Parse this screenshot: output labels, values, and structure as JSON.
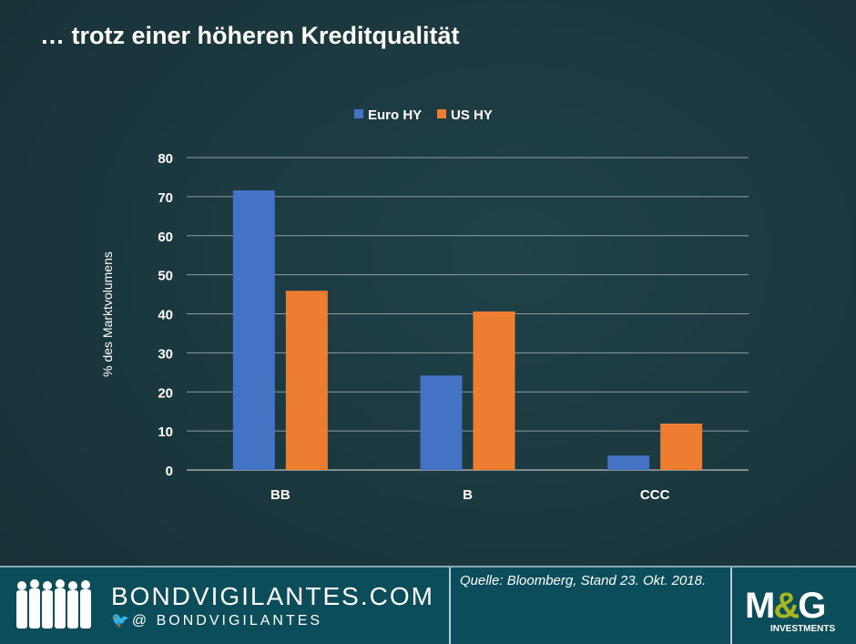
{
  "title": "… trotz einer höheren Kreditqualität",
  "footer": {
    "site": "BONDVIGILANTES.COM",
    "handle": "@ BONDVIGILANTES",
    "source": "Quelle: Bloomberg, Stand 23. Okt. 2018.",
    "logo": "M&G",
    "logo_sub": "INVESTMENTS"
  },
  "chart_data": {
    "type": "bar",
    "categories": [
      "BB",
      "B",
      "CCC"
    ],
    "series": [
      {
        "name": "Euro HY",
        "values": [
          71.6,
          24.2,
          3.7
        ],
        "color": "#4472c4"
      },
      {
        "name": "US HY",
        "values": [
          45.9,
          40.6,
          11.9
        ],
        "color": "#ed7d31"
      }
    ],
    "ylabel": "% des Marktvolumens",
    "ylim": [
      0,
      80
    ],
    "yticks": [
      0,
      10,
      20,
      30,
      40,
      50,
      60,
      70,
      80
    ],
    "grid": true,
    "legend": "top"
  }
}
